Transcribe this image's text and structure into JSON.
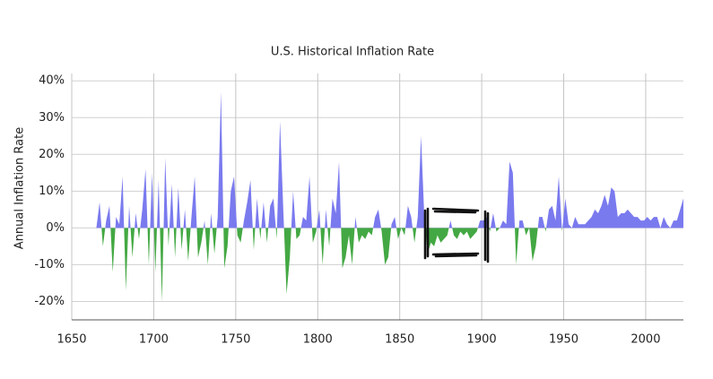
{
  "chart_data": {
    "type": "area",
    "title": "U.S. Historical Inflation Rate",
    "y_label": "Annual Inflation Rate",
    "positive_color": "#7a7aef",
    "negative_color": "#43a843",
    "grid": true,
    "xlim": [
      1650,
      2023
    ],
    "xticks": [
      1650,
      1700,
      1750,
      1800,
      1850,
      1900,
      1950,
      2000
    ],
    "ylim": [
      -25,
      42
    ],
    "yticks": [
      {
        "value": -20,
        "label": "-20%"
      },
      {
        "value": -10,
        "label": "-10%"
      },
      {
        "value": 0,
        "label": "0%"
      },
      {
        "value": 10,
        "label": "10%"
      },
      {
        "value": 20,
        "label": "20%"
      },
      {
        "value": 30,
        "label": "30%"
      },
      {
        "value": 40,
        "label": "40%"
      }
    ],
    "x": [
      1665,
      1667,
      1669,
      1671,
      1673,
      1675,
      1677,
      1679,
      1681,
      1683,
      1685,
      1687,
      1689,
      1691,
      1693,
      1695,
      1697,
      1699,
      1701,
      1703,
      1705,
      1707,
      1709,
      1711,
      1713,
      1715,
      1717,
      1719,
      1721,
      1723,
      1725,
      1727,
      1729,
      1731,
      1733,
      1735,
      1737,
      1739,
      1741,
      1743,
      1745,
      1747,
      1749,
      1751,
      1753,
      1755,
      1757,
      1759,
      1761,
      1763,
      1765,
      1767,
      1769,
      1771,
      1773,
      1775,
      1777,
      1779,
      1781,
      1783,
      1785,
      1787,
      1789,
      1791,
      1793,
      1795,
      1797,
      1799,
      1801,
      1803,
      1805,
      1807,
      1809,
      1811,
      1813,
      1815,
      1817,
      1819,
      1821,
      1823,
      1825,
      1827,
      1829,
      1831,
      1833,
      1835,
      1837,
      1839,
      1841,
      1843,
      1845,
      1847,
      1849,
      1851,
      1853,
      1855,
      1857,
      1859,
      1861,
      1863,
      1865,
      1867,
      1869,
      1871,
      1873,
      1875,
      1877,
      1879,
      1881,
      1883,
      1885,
      1887,
      1889,
      1891,
      1893,
      1895,
      1897,
      1899,
      1901,
      1903,
      1905,
      1907,
      1909,
      1911,
      1913,
      1915,
      1917,
      1919,
      1921,
      1923,
      1925,
      1927,
      1929,
      1931,
      1933,
      1935,
      1937,
      1939,
      1941,
      1943,
      1945,
      1947,
      1949,
      1951,
      1953,
      1955,
      1957,
      1959,
      1961,
      1963,
      1965,
      1967,
      1969,
      1971,
      1973,
      1975,
      1977,
      1979,
      1981,
      1983,
      1985,
      1987,
      1989,
      1991,
      1993,
      1995,
      1997,
      1999,
      2001,
      2003,
      2005,
      2007,
      2009,
      2011,
      2013,
      2015,
      2017,
      2019,
      2021,
      2023
    ],
    "values": [
      0,
      7,
      -5,
      2,
      6,
      -12,
      3,
      1,
      14,
      -17,
      6,
      -8,
      4,
      -3,
      5,
      16,
      -10,
      15,
      -12,
      13,
      -20,
      19,
      -5,
      12,
      -8,
      11,
      -6,
      5,
      -9,
      3,
      14,
      -8,
      -4,
      2,
      -10,
      4,
      -7,
      3,
      37,
      -11,
      -5,
      10,
      14,
      -2,
      -4,
      2,
      7,
      13,
      -6,
      8,
      -3,
      7,
      -4,
      6,
      8,
      -3,
      29,
      5,
      -18,
      -8,
      10,
      -3,
      -2,
      3,
      2,
      14,
      -4,
      -1,
      5,
      -10,
      5,
      -5,
      8,
      4,
      18,
      -11,
      -8,
      -2,
      -10,
      3,
      -4,
      -2,
      -3,
      -1,
      -2,
      3,
      5,
      -1,
      -10,
      -8,
      1,
      3,
      -3,
      0,
      -2,
      6,
      3,
      -4,
      3,
      25,
      3,
      -7,
      -4,
      -5,
      -2,
      -4,
      -3,
      -2,
      2,
      -2,
      -3,
      -1,
      -2,
      -1,
      -3,
      -2,
      -1,
      2,
      2,
      3,
      -1,
      4,
      -1,
      0,
      2,
      1,
      18,
      15,
      -10,
      2,
      2,
      -2,
      0,
      -9,
      -5,
      3,
      3,
      -1,
      5,
      6,
      2,
      14,
      -1,
      8,
      1,
      0,
      3,
      1,
      1,
      1,
      2,
      3,
      5,
      4,
      6,
      9,
      6,
      11,
      10,
      3,
      4,
      4,
      5,
      4,
      3,
      3,
      2,
      2,
      3,
      2,
      3,
      3,
      0,
      3,
      1,
      0,
      2,
      2,
      5,
      8
    ]
  }
}
